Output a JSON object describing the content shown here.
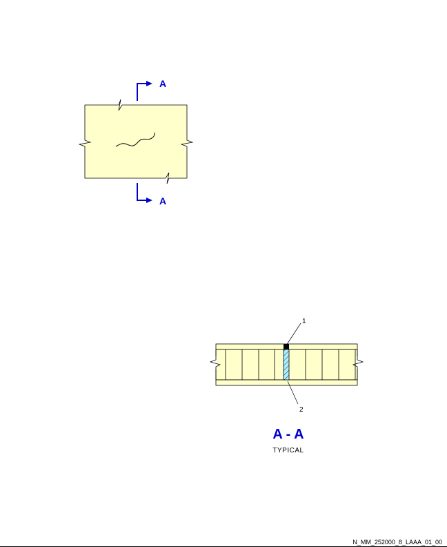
{
  "colors": {
    "panel_fill": "#ffffcc",
    "section_marker": "#0000cc",
    "hatch_fill": "#aaeeff",
    "line": "#000000"
  },
  "plan_view": {
    "section_label_top": "A",
    "section_label_bottom": "A"
  },
  "section_view": {
    "callout_1": "1",
    "callout_2": "2",
    "title": "A - A",
    "subtitle": "TYPICAL"
  },
  "footer": {
    "reference": "N_MM_252000_8_LAAA_01_00"
  }
}
